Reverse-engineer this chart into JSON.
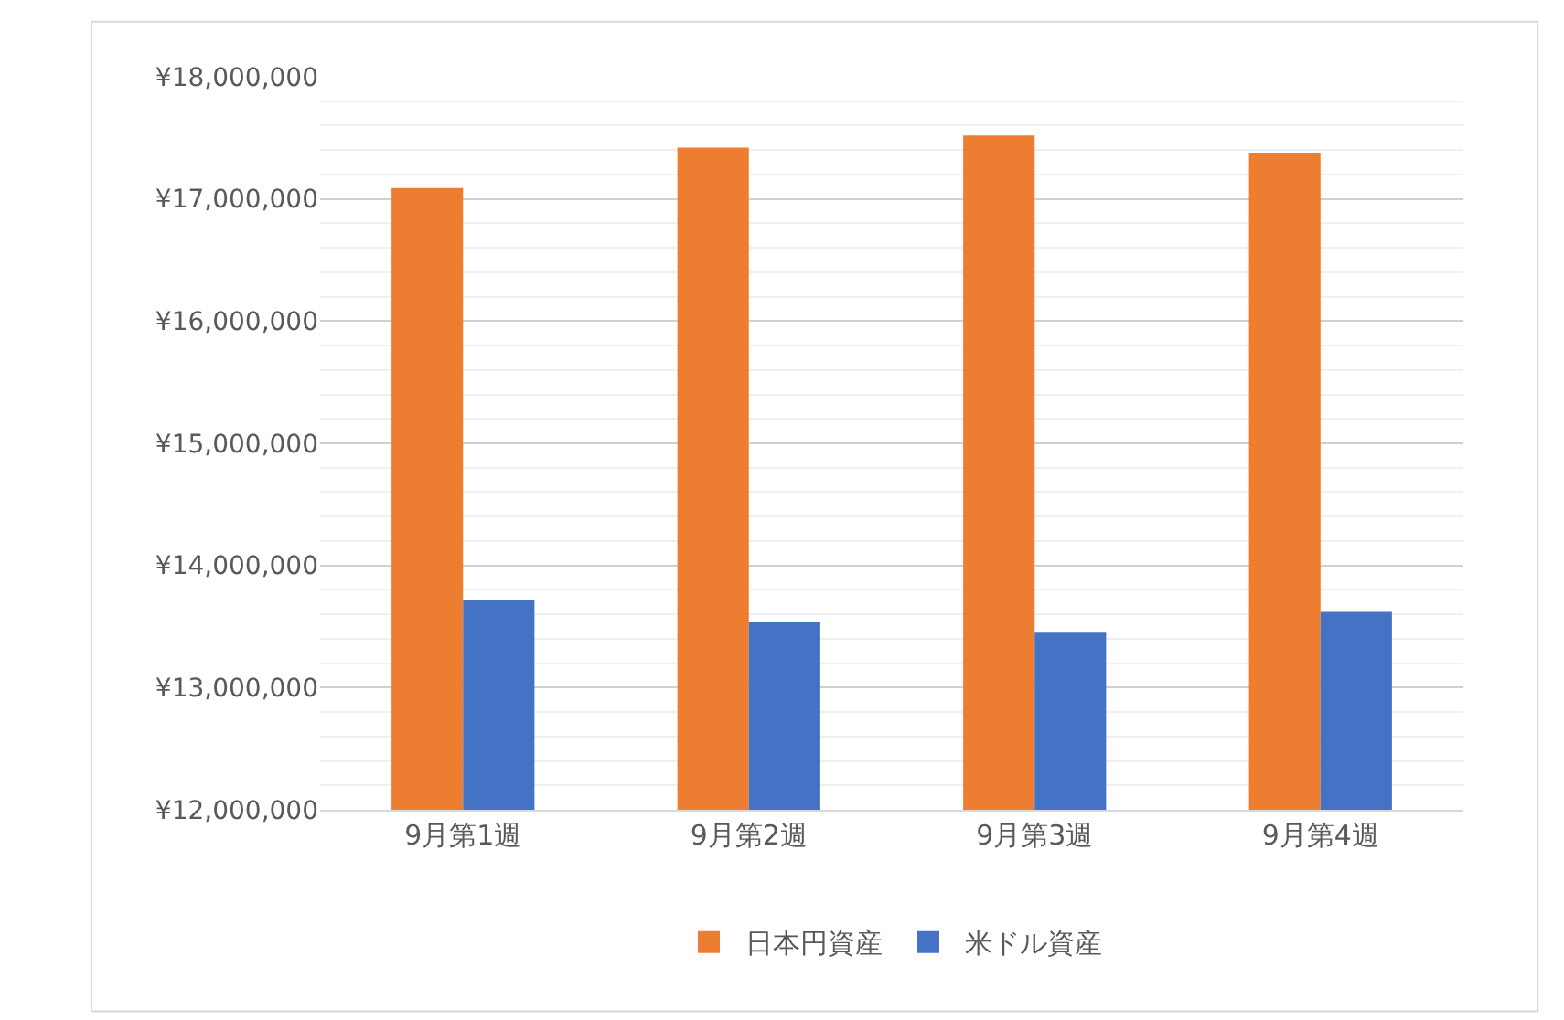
{
  "chart_data": {
    "type": "bar",
    "categories": [
      "9月第1週",
      "9月第2週",
      "9月第3週",
      "9月第4週"
    ],
    "series": [
      {
        "name": "日本円資産",
        "color": "#ed7d31",
        "values": [
          17090000,
          17420000,
          17520000,
          17380000
        ]
      },
      {
        "name": "米ドル資産",
        "color": "#4472c4",
        "values": [
          13720000,
          13540000,
          13450000,
          13620000
        ]
      }
    ],
    "ylim": [
      12000000,
      18000000
    ],
    "yticks": [
      {
        "value": 12000000,
        "label": "¥12,000,000"
      },
      {
        "value": 13000000,
        "label": "¥13,000,000"
      },
      {
        "value": 14000000,
        "label": "¥14,000,000"
      },
      {
        "value": 15000000,
        "label": "¥15,000,000"
      },
      {
        "value": 16000000,
        "label": "¥16,000,000"
      },
      {
        "value": 17000000,
        "label": "¥17,000,000"
      },
      {
        "value": 18000000,
        "label": "¥18,000,000"
      }
    ],
    "grid": "y",
    "legend": "bottom"
  }
}
